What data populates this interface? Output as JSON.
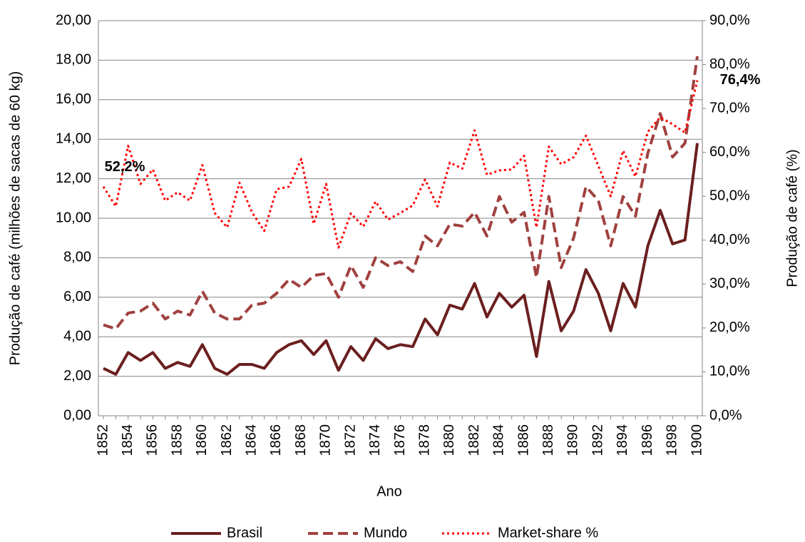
{
  "chart_data": {
    "type": "line",
    "x_label": "Ano",
    "y_label": "Produção de café (milhões de sacas de 60 kg)",
    "y2_label": "Produção de café   (%)",
    "categories": [
      "1852",
      null,
      "1854",
      null,
      "1856",
      null,
      "1858",
      null,
      "1860",
      null,
      "1862",
      null,
      "1864",
      null,
      "1866",
      null,
      "1868",
      null,
      "1870",
      null,
      "1872",
      null,
      "1874",
      null,
      "1876",
      null,
      "1878",
      null,
      "1880",
      null,
      "1882",
      null,
      "1884",
      null,
      "1886",
      null,
      "1888",
      null,
      "1890",
      null,
      "1892",
      null,
      "1894",
      null,
      "1896",
      null,
      "1898",
      null,
      "1900"
    ],
    "series": [
      {
        "name": "Brasil",
        "color": "#6b1f1f",
        "dash": "solid",
        "values": [
          2.4,
          2.1,
          3.2,
          2.8,
          3.2,
          2.4,
          2.7,
          2.5,
          3.6,
          2.4,
          2.1,
          2.6,
          2.6,
          2.4,
          3.2,
          3.6,
          3.8,
          3.1,
          3.8,
          2.3,
          3.5,
          2.8,
          3.9,
          3.4,
          3.6,
          3.5,
          4.9,
          4.1,
          5.6,
          5.4,
          6.7,
          5.0,
          6.2,
          5.5,
          6.1,
          3.0,
          6.8,
          4.3,
          5.3,
          7.4,
          6.2,
          4.3,
          6.7,
          5.5,
          8.6,
          10.4,
          8.7,
          8.9,
          13.8
        ]
      },
      {
        "name": "Mundo",
        "color": "#a0413f",
        "dash": "dashed",
        "values": [
          4.6,
          4.4,
          5.2,
          5.3,
          5.7,
          4.9,
          5.3,
          5.1,
          6.3,
          5.2,
          4.9,
          4.9,
          5.6,
          5.7,
          6.2,
          6.9,
          6.5,
          7.1,
          7.2,
          6.0,
          7.6,
          6.5,
          8.0,
          7.6,
          7.8,
          7.3,
          9.1,
          8.6,
          9.7,
          9.6,
          10.3,
          9.1,
          11.1,
          9.8,
          10.3,
          7.0,
          11.1,
          7.5,
          9.0,
          11.6,
          10.9,
          8.6,
          11.1,
          10.1,
          13.3,
          15.3,
          13.1,
          13.8,
          18.2
        ]
      },
      {
        "name": "Market-share %",
        "color": "#ff0000",
        "dash": "dotted",
        "axis": "y2",
        "values": [
          52.2,
          47.7,
          61.5,
          52.8,
          56.1,
          49.0,
          50.9,
          49.0,
          57.1,
          46.2,
          42.9,
          53.1,
          46.4,
          42.1,
          51.6,
          52.2,
          58.5,
          43.7,
          52.8,
          38.3,
          46.1,
          43.1,
          48.8,
          44.7,
          46.2,
          47.9,
          53.8,
          47.7,
          57.7,
          56.3,
          65.0,
          54.9,
          55.9,
          56.1,
          59.2,
          42.9,
          61.3,
          57.3,
          58.9,
          63.8,
          56.9,
          50.0,
          60.4,
          54.5,
          64.7,
          68.0,
          66.4,
          64.5,
          76.4
        ],
        "value_labels": [
          "52,2%",
          null,
          null,
          null,
          null,
          null,
          null,
          null,
          null,
          null,
          null,
          null,
          null,
          null,
          null,
          null,
          null,
          null,
          null,
          null,
          null,
          null,
          null,
          null,
          null,
          null,
          null,
          null,
          null,
          null,
          null,
          null,
          null,
          null,
          null,
          null,
          null,
          null,
          null,
          null,
          null,
          null,
          null,
          null,
          null,
          null,
          null,
          null,
          "76,4%"
        ]
      }
    ],
    "ylim": [
      0,
      20
    ],
    "yticks": [
      {
        "value": 0,
        "label": "0,00"
      },
      {
        "value": 2,
        "label": "2,00"
      },
      {
        "value": 4,
        "label": "4,00"
      },
      {
        "value": 6,
        "label": "6,00"
      },
      {
        "value": 8,
        "label": "8,00"
      },
      {
        "value": 10,
        "label": "10,00"
      },
      {
        "value": 12,
        "label": "12,00"
      },
      {
        "value": 14,
        "label": "14,00"
      },
      {
        "value": 16,
        "label": "16,00"
      },
      {
        "value": 18,
        "label": "18,00"
      },
      {
        "value": 20,
        "label": "20,00"
      }
    ],
    "y2lim": [
      0,
      90
    ],
    "y2ticks": [
      {
        "value": 0,
        "label": "0,0%"
      },
      {
        "value": 10,
        "label": "10,0%"
      },
      {
        "value": 20,
        "label": "20,0%"
      },
      {
        "value": 30,
        "label": "30,0%"
      },
      {
        "value": 40,
        "label": "40,0%"
      },
      {
        "value": 50,
        "label": "50,0%"
      },
      {
        "value": 60,
        "label": "60,0%"
      },
      {
        "value": 70,
        "label": "70,0%"
      },
      {
        "value": 80,
        "label": "80,0%"
      },
      {
        "value": 90,
        "label": "90,0%"
      }
    ],
    "grid": true,
    "legend": "bottom"
  }
}
